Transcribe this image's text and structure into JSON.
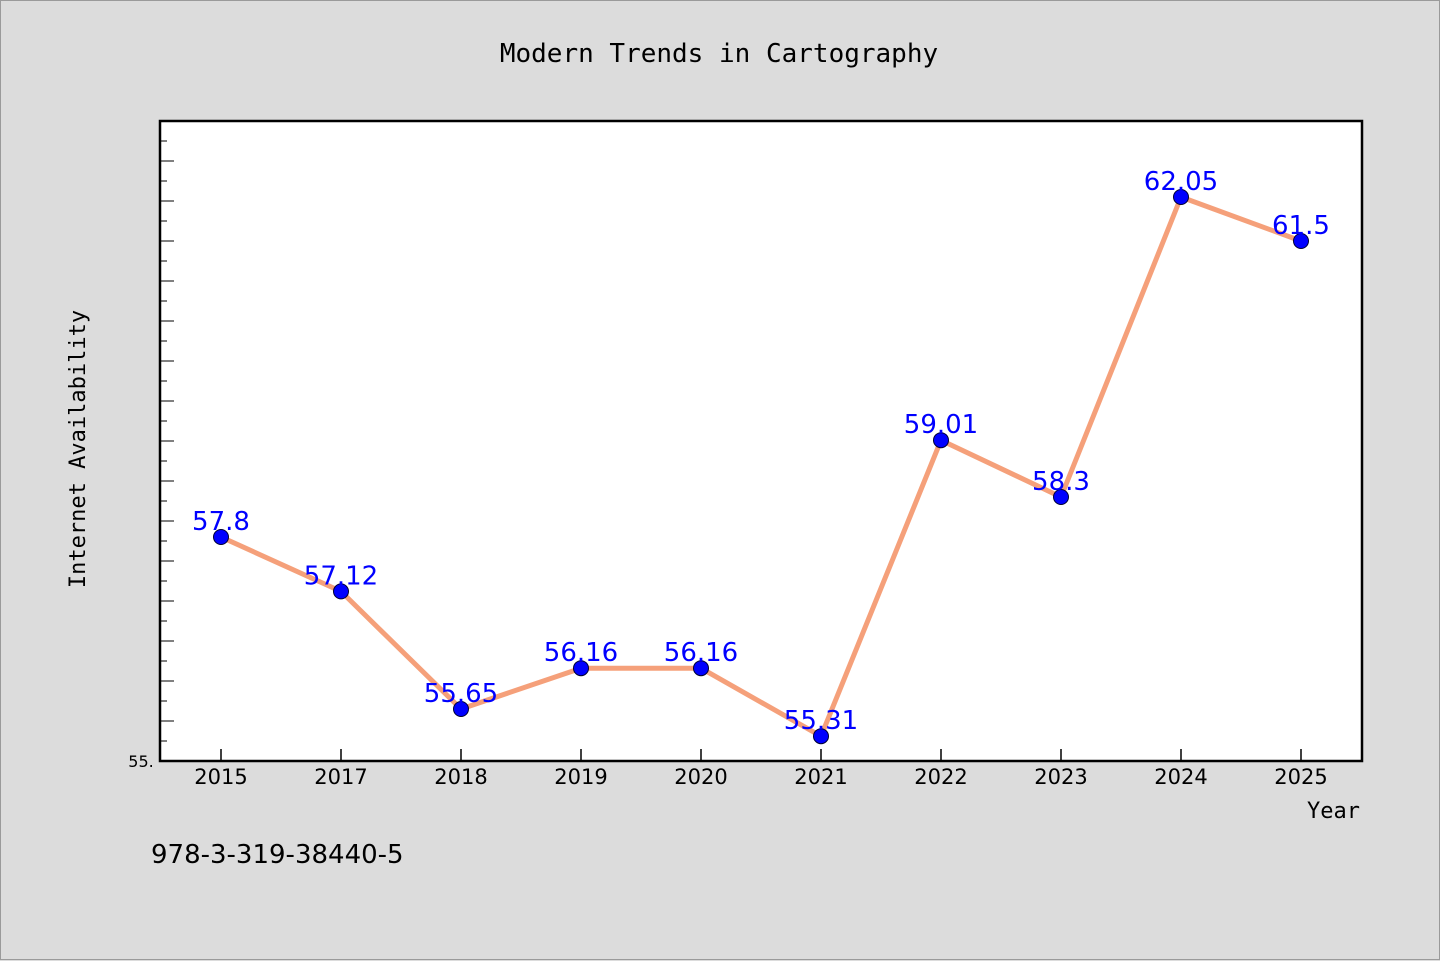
{
  "chart_data": {
    "type": "line",
    "title": "Modern Trends in Cartography",
    "xlabel": "Year",
    "ylabel": "Internet Availability",
    "categories": [
      "2015",
      "2017",
      "2018",
      "2019",
      "2020",
      "2021",
      "2022",
      "2023",
      "2024",
      "2025"
    ],
    "series": [
      {
        "values": [
          57.8,
          57.12,
          55.65,
          56.16,
          56.16,
          55.31,
          59.01,
          58.3,
          62.05,
          61.5
        ],
        "labels": [
          "57.8",
          "57.12",
          "55.65",
          "56.16",
          "56.16",
          "55.31",
          "59.01",
          "58.3",
          "62.05",
          "61.5"
        ]
      }
    ],
    "ylim": [
      55,
      63
    ],
    "y_tick_label": "55.",
    "grid": false,
    "colors": {
      "line": "#f5a07a",
      "marker": "#0000ff",
      "label": "#0000ff",
      "plot_bg": "#ffffff",
      "page_bg": "#dcdcdc"
    }
  },
  "footnote": "978-3-319-38440-5"
}
